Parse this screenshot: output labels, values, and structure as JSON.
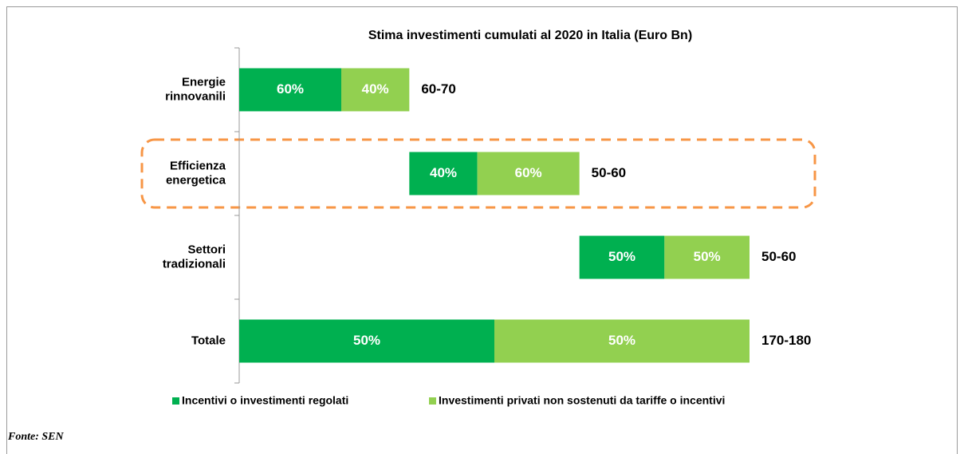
{
  "chart_data": {
    "type": "waterfall-stacked-bar",
    "title": "Stima investimenti cumulati al 2020 in Italia (Euro Bn)",
    "categories": [
      [
        "Energie",
        "rinnovanili"
      ],
      [
        "Efficienza",
        "energetica"
      ],
      [
        "Settori",
        "tradizionali"
      ],
      [
        "Totale"
      ]
    ],
    "range_labels": [
      "60-70",
      "50-60",
      "50-60",
      "170-180"
    ],
    "series": [
      {
        "name": "Incentivi o investimenti regolati",
        "color": "#00b050",
        "values": [
          60,
          40,
          50,
          50
        ],
        "value_labels": [
          "60%",
          "40%",
          "50%",
          "50%"
        ]
      },
      {
        "name": "Investimenti privati non sostenuti da tariffe o incentivi",
        "color": "#92d050",
        "values": [
          40,
          60,
          50,
          50
        ],
        "value_labels": [
          "40%",
          "60%",
          "50%",
          "50%"
        ]
      }
    ],
    "highlight_color": "#f79646",
    "source": "Fonte: SEN"
  }
}
